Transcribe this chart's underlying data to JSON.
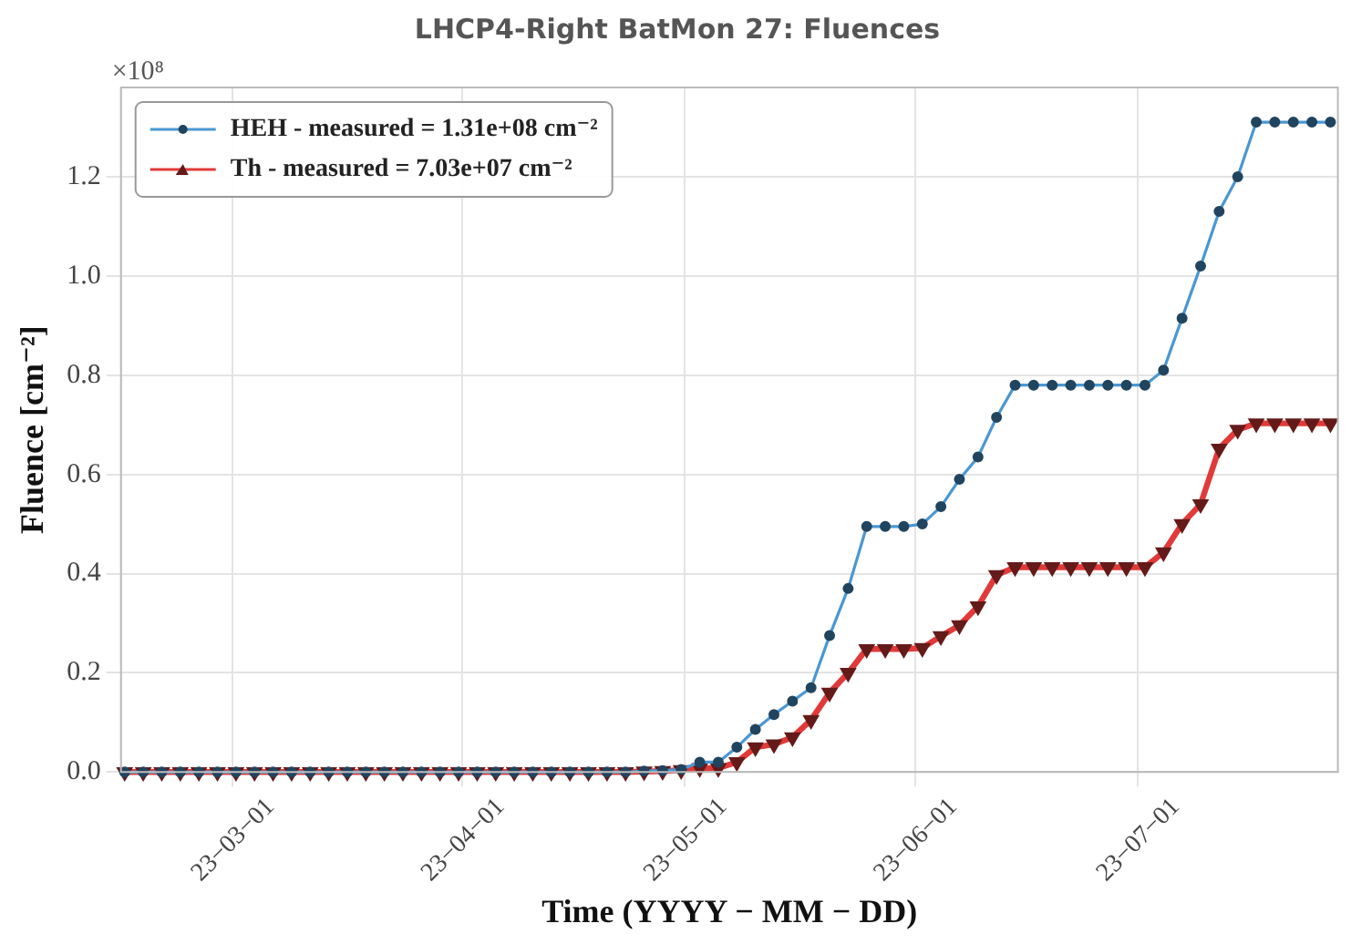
{
  "chart_data": {
    "type": "line",
    "title": "LHCP4-Right BatMon 27: Fluences",
    "xlabel": "Time (YYYY − MM − DD)",
    "ylabel": "Fluence [cm⁻²]",
    "annotations": [
      "×10⁸"
    ],
    "x": [
      "--02-14T12:00",
      "--02-17",
      "--02-19T12:00",
      "--02-22",
      "--02-24T12:00",
      "--02-27",
      "--03-01T12:00",
      "--03-04",
      "--03-06T12:00",
      "--03-09",
      "--03-11T12:00",
      "--03-14",
      "--03-16T12:00",
      "--03-19",
      "--03-21T12:00",
      "--03-24",
      "--03-26T12:00",
      "--03-29",
      "--03-31T12:00",
      "--04-03",
      "--04-05T12:00",
      "--04-08",
      "--04-10T12:00",
      "--04-13",
      "--04-15T12:00",
      "--04-18",
      "--04-20T12:00",
      "--04-23",
      "--04-25T12:00",
      "--04-28",
      "--04-30T12:00",
      "--05-03",
      "--05-05T12:00",
      "--05-08",
      "--05-10T12:00",
      "--05-13",
      "--05-15T12:00",
      "--05-18",
      "--05-20T12:00",
      "--05-23",
      "--05-25T12:00",
      "--05-28",
      "--05-30T12:00",
      "--06-02",
      "--06-04T12:00",
      "--06-07",
      "--06-09T12:00",
      "--06-12",
      "--06-14T12:00",
      "--06-17",
      "--06-19T12:00",
      "--06-22",
      "--06-24T12:00",
      "--06-27",
      "--06-29T12:00",
      "--07-02",
      "--07-04T12:00",
      "--07-07",
      "--07-09T12:00",
      "--07-12",
      "--07-14T12:00",
      "--07-17",
      "--07-19T12:00",
      "--07-22",
      "--07-24T12:00",
      "--07-27"
    ],
    "series": [
      {
        "name": "HEH - measured = 1.31e+08 cm⁻²",
        "color": "#4a97d2",
        "marker": "circle",
        "values": [
          0,
          0,
          0,
          0,
          0,
          0,
          0,
          0,
          0,
          0,
          0,
          0,
          0,
          0,
          0,
          0,
          0,
          0,
          0,
          0,
          0,
          0,
          0,
          0,
          0,
          0,
          0,
          0,
          0.002,
          0.003,
          0.005,
          0.02,
          0.02,
          0.05,
          0.086,
          0.116,
          0.143,
          0.17,
          0.275,
          0.37,
          0.495,
          0.495,
          0.495,
          0.5,
          0.535,
          0.59,
          0.635,
          0.715,
          0.78,
          0.78,
          0.78,
          0.78,
          0.78,
          0.78,
          0.78,
          0.78,
          0.81,
          0.915,
          1.02,
          1.13,
          1.2,
          1.31,
          1.31,
          1.31,
          1.31,
          1.31
        ]
      },
      {
        "name": "Th - measured = 7.03e+07 cm⁻²",
        "color": "#e03a3a",
        "marker": "triangle",
        "values": [
          0,
          0,
          0,
          0,
          0,
          0,
          0,
          0,
          0,
          0,
          0,
          0,
          0,
          0,
          0,
          0,
          0,
          0,
          0,
          0,
          0,
          0,
          0,
          0,
          0,
          0,
          0,
          0,
          0.001,
          0.002,
          0.004,
          0.008,
          0.008,
          0.02,
          0.05,
          0.056,
          0.07,
          0.105,
          0.16,
          0.2,
          0.248,
          0.248,
          0.248,
          0.25,
          0.274,
          0.296,
          0.334,
          0.397,
          0.413,
          0.413,
          0.413,
          0.413,
          0.413,
          0.413,
          0.413,
          0.413,
          0.443,
          0.5,
          0.54,
          0.652,
          0.69,
          0.703,
          0.703,
          0.703,
          0.703,
          0.703
        ]
      }
    ],
    "xlim": [
      "--02-14",
      "--07-28"
    ],
    "xticks": [
      {
        "value": "--03-01",
        "label": "23−03−01"
      },
      {
        "value": "--04-01",
        "label": "23−04−01"
      },
      {
        "value": "--05-01",
        "label": "23−05−01"
      },
      {
        "value": "--06-01",
        "label": "23−06−01"
      },
      {
        "value": "--07-01",
        "label": "23−07−01"
      }
    ],
    "ylim": [
      0,
      1.38
    ],
    "yticks": [
      {
        "value": 0,
        "label": "0.0"
      },
      0.2,
      0.4,
      0.6,
      0.8,
      {
        "value": 1,
        "label": "1.0"
      },
      1.2
    ],
    "grid": true,
    "legend": "top left",
    "line_style": "solid"
  }
}
